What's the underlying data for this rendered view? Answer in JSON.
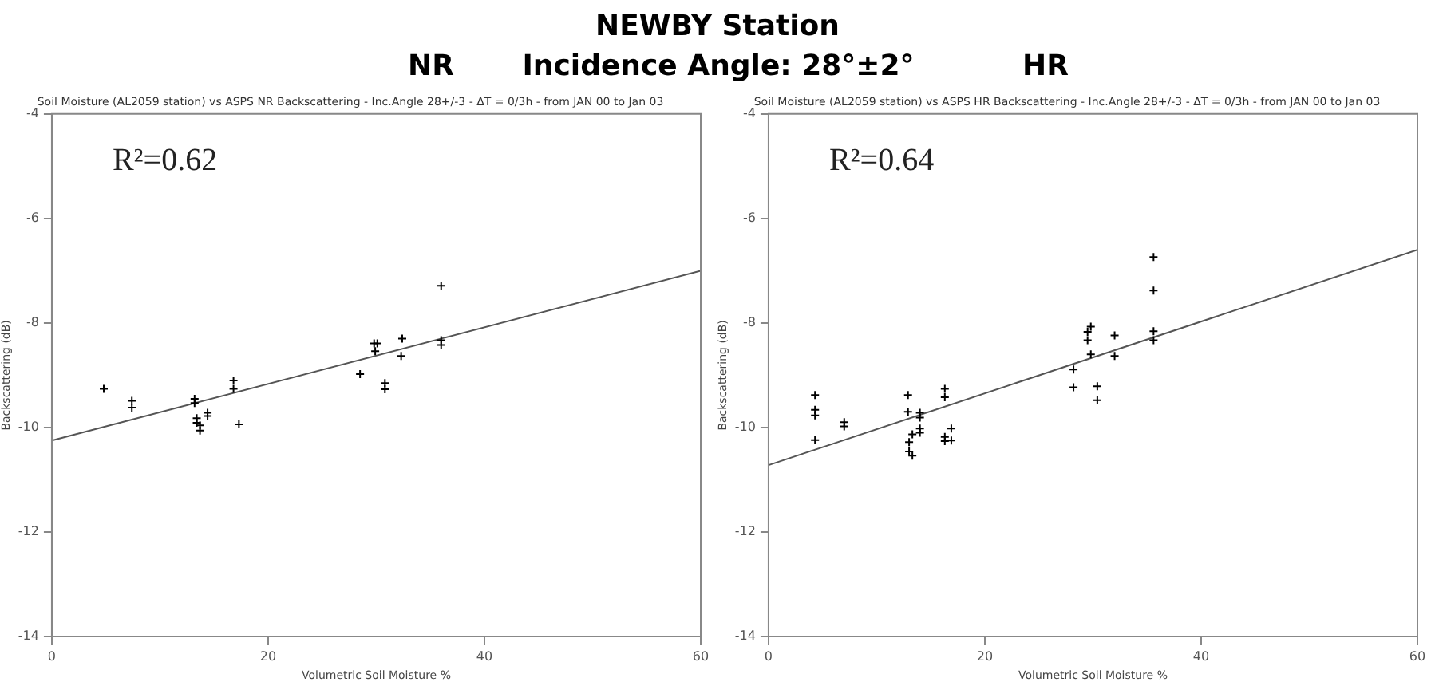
{
  "chart_data": [
    {
      "type": "other",
      "title": "NEWBY Station",
      "annotations": [
        "NR",
        "Incidence Angle: 28°±2°",
        "HR"
      ]
    },
    {
      "type": "scatter",
      "title": "Soil Moisture (AL2059 station) vs ASPS NR Backscattering - Inc.Angle 28+/-3 - ΔT = 0/3h - from JAN 00 to Jan 03",
      "xlabel": "Volumetric Soil Moisture %",
      "ylabel": "Backscattering (dB)",
      "annotations": [
        "R²=0.62"
      ],
      "xlim": [
        0,
        60
      ],
      "xticks": [
        0,
        20,
        40,
        60
      ],
      "ylim": [
        -14,
        -4
      ],
      "yticks": [
        -14,
        -12,
        -10,
        -8,
        -6,
        -4
      ],
      "grid": false,
      "legend": false,
      "marker": "cross",
      "series": [
        {
          "color": "#000000",
          "x": [
            4.8,
            7.4,
            7.4,
            13.2,
            13.2,
            13.4,
            13.4,
            13.7,
            13.7,
            14.4,
            14.4,
            16.8,
            16.8,
            17.3,
            28.5,
            29.8,
            30.1,
            29.9,
            30.8,
            30.8,
            32.4,
            32.3,
            36.0,
            36.0,
            36.0
          ],
          "values": [
            -9.26,
            -9.49,
            -9.62,
            -9.45,
            -9.53,
            -9.82,
            -9.91,
            -9.96,
            -10.06,
            -9.72,
            -9.78,
            -9.1,
            -9.26,
            -9.94,
            -8.98,
            -8.39,
            -8.39,
            -8.54,
            -9.15,
            -9.27,
            -8.3,
            -8.63,
            -7.29,
            -8.33,
            -8.42
          ]
        },
        {
          "type": "line",
          "color": "#555555",
          "marker": "none",
          "x": [
            0,
            60
          ],
          "values": [
            -10.25,
            -7.0
          ]
        }
      ]
    },
    {
      "type": "scatter",
      "title": "Soil Moisture (AL2059 station) vs ASPS HR Backscattering - Inc.Angle 28+/-3 - ΔT = 0/3h - from JAN 00 to Jan 03",
      "xlabel": "Volumetric Soil Moisture %",
      "ylabel": "Backscattering (dB)",
      "annotations": [
        "R²=0.64"
      ],
      "xlim": [
        0,
        60
      ],
      "xticks": [
        0,
        20,
        40,
        60
      ],
      "ylim": [
        -14,
        -4
      ],
      "yticks": [
        -14,
        -12,
        -10,
        -8,
        -6,
        -4
      ],
      "grid": false,
      "legend": false,
      "marker": "cross",
      "series": [
        {
          "color": "#000000",
          "x": [
            4.3,
            4.3,
            4.3,
            4.3,
            7.0,
            7.0,
            12.9,
            12.9,
            13.0,
            13.0,
            13.3,
            13.3,
            14.0,
            14.0,
            14.0,
            14.0,
            16.3,
            16.3,
            16.3,
            16.3,
            16.9,
            16.9,
            28.2,
            28.2,
            29.5,
            29.5,
            29.8,
            29.8,
            30.4,
            30.4,
            32.0,
            32.0,
            35.6,
            35.6,
            35.6,
            35.6
          ],
          "values": [
            -9.38,
            -9.66,
            -9.77,
            -10.24,
            -9.9,
            -9.98,
            -9.38,
            -9.7,
            -10.28,
            -10.46,
            -10.13,
            -10.54,
            -9.72,
            -9.81,
            -10.02,
            -10.1,
            -9.26,
            -9.42,
            -10.18,
            -10.26,
            -10.02,
            -10.25,
            -8.89,
            -9.23,
            -8.17,
            -8.33,
            -8.07,
            -8.6,
            -9.21,
            -9.48,
            -8.24,
            -8.63,
            -6.74,
            -7.38,
            -8.16,
            -8.33
          ]
        },
        {
          "type": "line",
          "color": "#555555",
          "marker": "none",
          "x": [
            0,
            60
          ],
          "values": [
            -10.72,
            -6.6
          ]
        }
      ]
    }
  ]
}
